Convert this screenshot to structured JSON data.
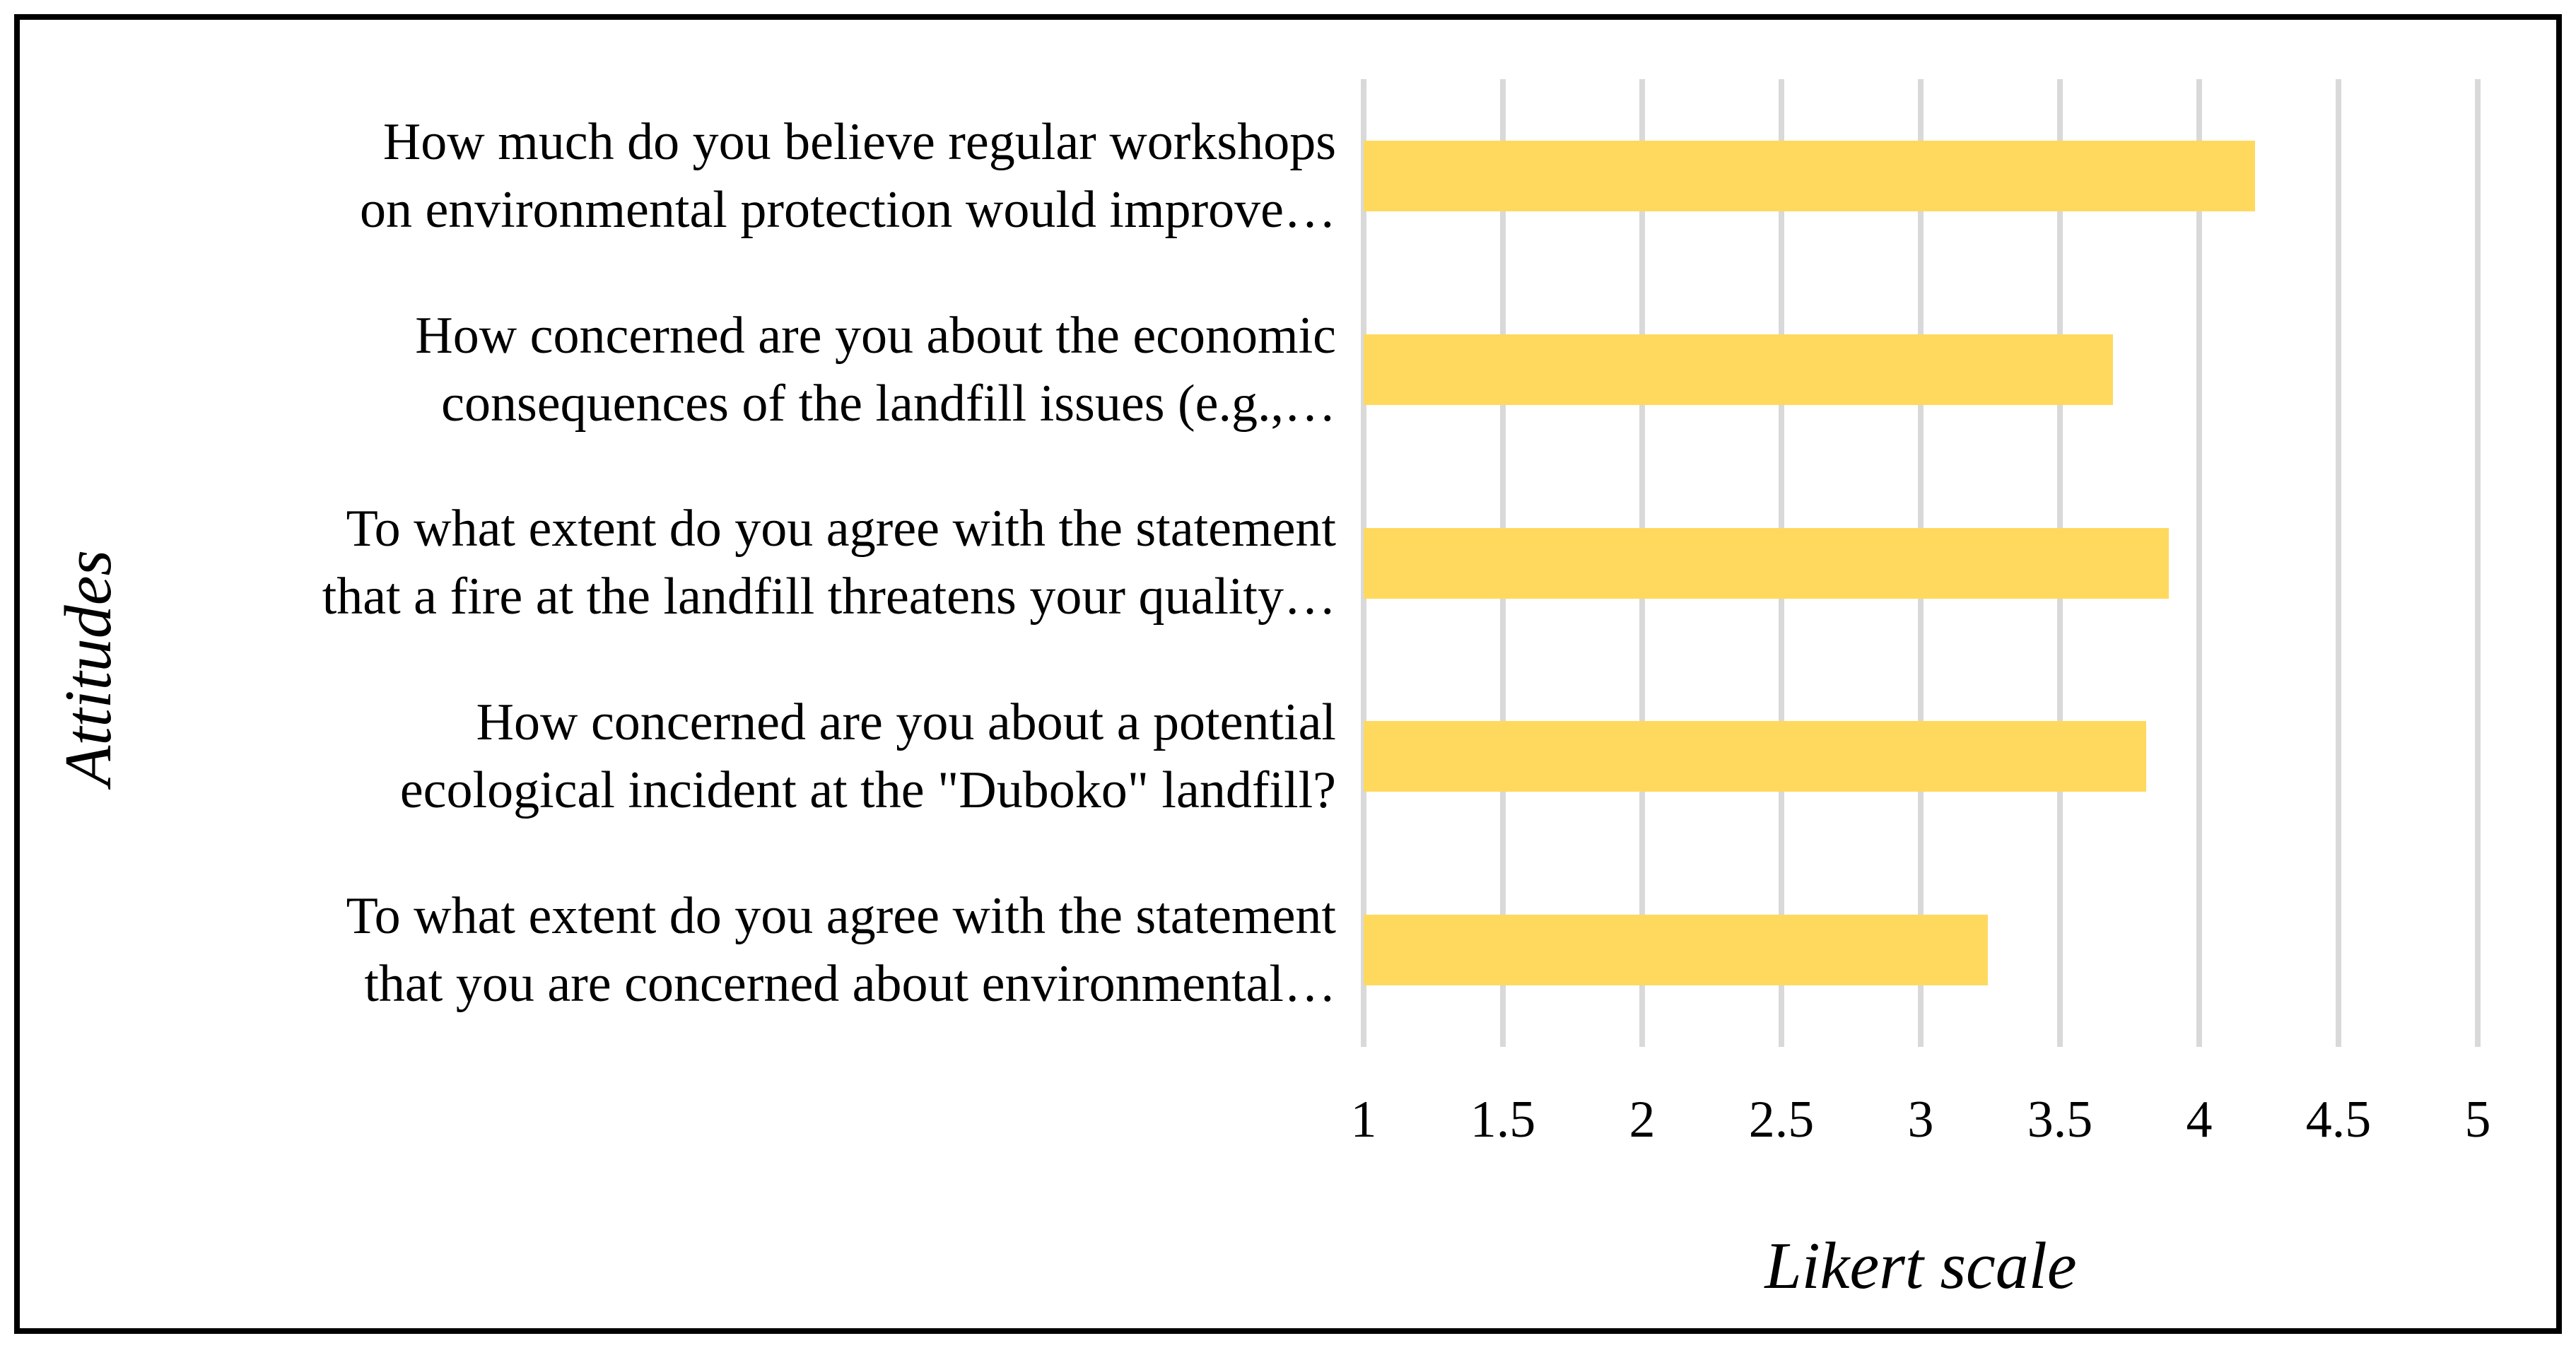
{
  "figure": {
    "background": "#ffffff",
    "border_color": "#000000",
    "text_color": "#000000"
  },
  "chart_data": {
    "type": "bar",
    "orientation": "horizontal",
    "title": "",
    "xlabel": "Likert scale",
    "ylabel": "Attitudes",
    "xlim": [
      1,
      5
    ],
    "xtick_labels": [
      "1",
      "1.5",
      "2",
      "2.5",
      "3",
      "3.5",
      "4",
      "4.5",
      "5"
    ],
    "grid": "vertical-gridlines-on",
    "legend": "none",
    "bar_color": "#FFD95E",
    "gridline_color": "#D9D9D9",
    "categories": [
      "How much do you believe regular workshops on environmental protection would improve…",
      "How concerned are you about the economic consequences of the landfill issues (e.g.,…",
      "To what extent do you agree with the statement that a fire at the landfill threatens your quality…",
      "How concerned are you about a potential ecological incident at the \"Duboko\" landfill?",
      "To what extent do you agree with the statement that you are concerned about environmental…"
    ],
    "category_lines": [
      [
        "How much do you believe regular workshops",
        "on environmental protection would improve…"
      ],
      [
        "How concerned are you about the economic",
        "consequences of the landfill issues (e.g.,…"
      ],
      [
        "To what extent do you agree with the statement",
        "that a fire at the landfill threatens your quality…"
      ],
      [
        "How concerned are you about a potential",
        "ecological incident at the \"Duboko\" landfill?"
      ],
      [
        "To what extent do you agree with the statement",
        "that you are concerned about environmental…"
      ]
    ],
    "values": [
      4.2,
      3.69,
      3.89,
      3.81,
      3.24
    ]
  }
}
